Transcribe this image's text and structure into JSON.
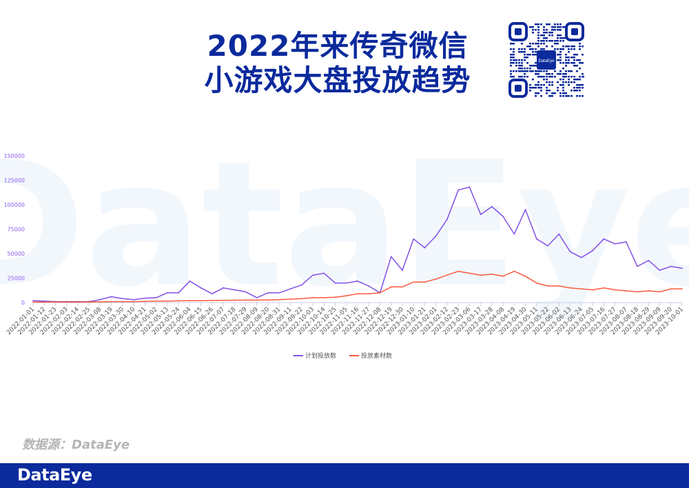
{
  "title_line1": "2022年来传奇微信",
  "title_line2": "小游戏大盘投放趋势",
  "qr_logo_text": "DataEye",
  "source": "数据源：DataEye",
  "footer_logo": "DataEye",
  "watermark": "DataEye",
  "colors": {
    "brand": "#0b2a9c",
    "series1": "#8250e6",
    "series2": "#fb5a3f",
    "yaxis_labels": "#8a5cf0"
  },
  "chart_data": {
    "type": "line",
    "title": "",
    "xlabel": "",
    "ylabel": "",
    "ylim": [
      0,
      150000
    ],
    "yticks": [
      "0",
      "25000",
      "50000",
      "75000",
      "100000",
      "125000",
      "150000"
    ],
    "legend_position": "bottom",
    "grid": false,
    "x": [
      "2022-01-01",
      "2022-01-12",
      "2022-01-23",
      "2022-02-03",
      "2022-02-14",
      "2022-02-25",
      "2022-03-08",
      "2022-03-19",
      "2022-03-30",
      "2022-04-10",
      "2022-04-21",
      "2022-05-02",
      "2022-05-13",
      "2022-05-24",
      "2022-06-04",
      "2022-06-15",
      "2022-06-26",
      "2022-07-07",
      "2022-07-18",
      "2022-07-29",
      "2022-08-09",
      "2022-08-20",
      "2022-08-31",
      "2022-09-11",
      "2022-09-22",
      "2022-10-03",
      "2022-10-14",
      "2022-10-25",
      "2022-11-05",
      "2022-11-16",
      "2022-11-27",
      "2022-12-08",
      "2022-12-19",
      "2022-12-30",
      "2023-01-10",
      "2023-01-21",
      "2023-02-01",
      "2023-02-12",
      "2023-02-23",
      "2023-03-06",
      "2023-03-17",
      "2023-03-28",
      "2023-04-08",
      "2023-04-19",
      "2023-04-30",
      "2023-05-11",
      "2023-05-22",
      "2023-06-02",
      "2023-06-13",
      "2023-06-24",
      "2023-07-05",
      "2023-07-16",
      "2023-07-27",
      "2023-08-07",
      "2023-08-18",
      "2023-08-29",
      "2023-09-09",
      "2023-09-20",
      "2023-10-01"
    ],
    "series": [
      {
        "name": "计划投放数",
        "values": [
          2000,
          1500,
          1000,
          1000,
          1000,
          1000,
          3000,
          6000,
          4000,
          3000,
          4500,
          5000,
          10000,
          10000,
          22000,
          15000,
          9000,
          15000,
          13000,
          11000,
          5000,
          10000,
          10000,
          14000,
          18000,
          28000,
          30000,
          20000,
          20000,
          22000,
          17000,
          10000,
          47000,
          33000,
          65000,
          56000,
          68000,
          85000,
          115000,
          118000,
          90000,
          98000,
          88000,
          70000,
          95000,
          65000,
          58000,
          70000,
          52000,
          46000,
          53000,
          65000,
          60000,
          62000,
          37000,
          43000,
          33000,
          37000,
          35000
        ]
      },
      {
        "name": "投放素材数",
        "values": [
          500,
          500,
          500,
          500,
          500,
          600,
          800,
          1000,
          1000,
          1000,
          1200,
          1500,
          1500,
          1800,
          2000,
          2000,
          2200,
          2300,
          2400,
          2500,
          2500,
          2700,
          3000,
          3500,
          4000,
          5000,
          5000,
          5500,
          7000,
          9000,
          9000,
          10000,
          16000,
          16000,
          21000,
          21000,
          24000,
          28000,
          32000,
          30000,
          28000,
          29000,
          27000,
          32000,
          27000,
          20000,
          17000,
          17000,
          15000,
          14000,
          13000,
          15000,
          13000,
          12000,
          11000,
          12000,
          11000,
          14000,
          14000
        ]
      }
    ]
  }
}
